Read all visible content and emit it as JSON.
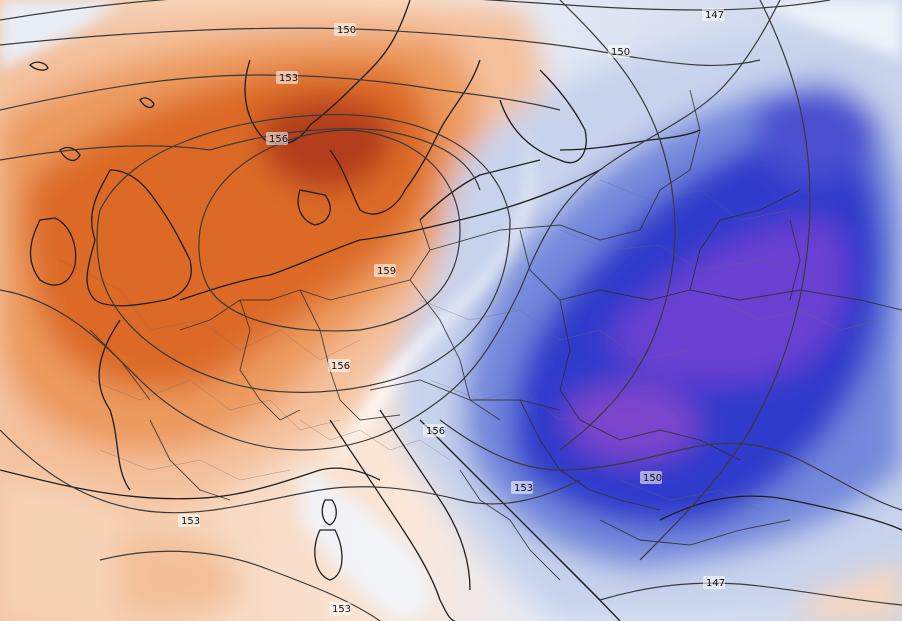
{
  "map": {
    "type": "geopotential-height-anomaly-chart",
    "region": "Europe",
    "colors": {
      "warm_light": "#f7d9bf",
      "warm_mid": "#ee9a5c",
      "warm_strong": "#d9601c",
      "warm_max": "#a9321a",
      "neutral": "#ffffff",
      "cold_light": "#c9d6ec",
      "cold_mid": "#6f86d8",
      "cold_strong": "#2a34c8",
      "cold_max": "#7a3fd0",
      "contour_line": "#3a3a3a",
      "border_line": "#2d2d2d"
    },
    "contour_labels": [
      "150",
      "147",
      "150",
      "153",
      "156",
      "159",
      "156",
      "156",
      "153",
      "150",
      "153",
      "153",
      "147"
    ]
  }
}
